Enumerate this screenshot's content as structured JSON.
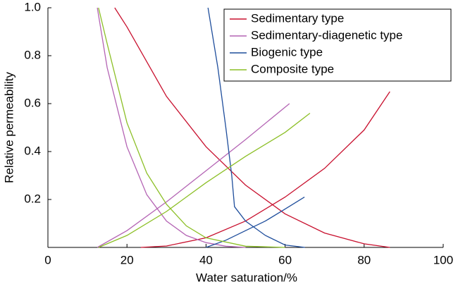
{
  "chart_data": {
    "type": "line",
    "xlabel": "Water saturation/%",
    "ylabel": "Relative permeability",
    "xlim": [
      0,
      100
    ],
    "ylim": [
      0,
      1
    ],
    "xticks": [
      0,
      20,
      40,
      60,
      80,
      100
    ],
    "yticks": [
      0.2,
      0.4,
      0.6,
      0.8,
      {
        "value": 1,
        "label": "1.0"
      }
    ],
    "legend": "upper right",
    "series": [
      {
        "name": "Sedimentary type",
        "color": "#c8102e",
        "curves": [
          {
            "x": [
              16.9,
              20,
              30,
              40,
              50,
              60,
              70,
              80,
              86.5
            ],
            "values": [
              1.0,
              0.92,
              0.63,
              0.42,
              0.26,
              0.14,
              0.06,
              0.015,
              0
            ]
          },
          {
            "x": [
              23.5,
              30,
              40,
              50,
              60,
              70,
              80,
              86.5
            ],
            "values": [
              0,
              0.006,
              0.04,
              0.11,
              0.21,
              0.33,
              0.49,
              0.65
            ]
          }
        ]
      },
      {
        "name": "Sedimentary-diagenetic type",
        "color": "#b464b4",
        "curves": [
          {
            "x": [
              12.5,
              15,
              20,
              25,
              30,
              35,
              40,
              45,
              50
            ],
            "values": [
              1.0,
              0.75,
              0.42,
              0.22,
              0.11,
              0.05,
              0.02,
              0.005,
              0
            ]
          },
          {
            "x": [
              12.5,
              20,
              30,
              40,
              50,
              61.1
            ],
            "values": [
              0,
              0.07,
              0.19,
              0.32,
              0.45,
              0.6
            ]
          }
        ]
      },
      {
        "name": "Biogenic type",
        "color": "#1f4e9c",
        "curves": [
          {
            "x": [
              40.5,
              43,
              45,
              46.5,
              47.2,
              50,
              55,
              60,
              65
            ],
            "values": [
              1.0,
              0.75,
              0.5,
              0.3,
              0.17,
              0.11,
              0.05,
              0.01,
              0
            ]
          },
          {
            "x": [
              40,
              45,
              50,
              55,
              60,
              64.9
            ],
            "values": [
              0,
              0.03,
              0.07,
              0.11,
              0.16,
              0.21
            ]
          }
        ]
      },
      {
        "name": "Composite type",
        "color": "#8cbf26",
        "curves": [
          {
            "x": [
              12.8,
              15,
              20,
              25,
              30,
              35,
              40,
              50,
              60
            ],
            "values": [
              1.0,
              0.85,
              0.52,
              0.31,
              0.18,
              0.09,
              0.04,
              0.005,
              0
            ]
          },
          {
            "x": [
              12.8,
              20,
              30,
              40,
              50,
              60,
              66.3
            ],
            "values": [
              0,
              0.05,
              0.15,
              0.27,
              0.38,
              0.48,
              0.56
            ]
          }
        ]
      }
    ]
  }
}
